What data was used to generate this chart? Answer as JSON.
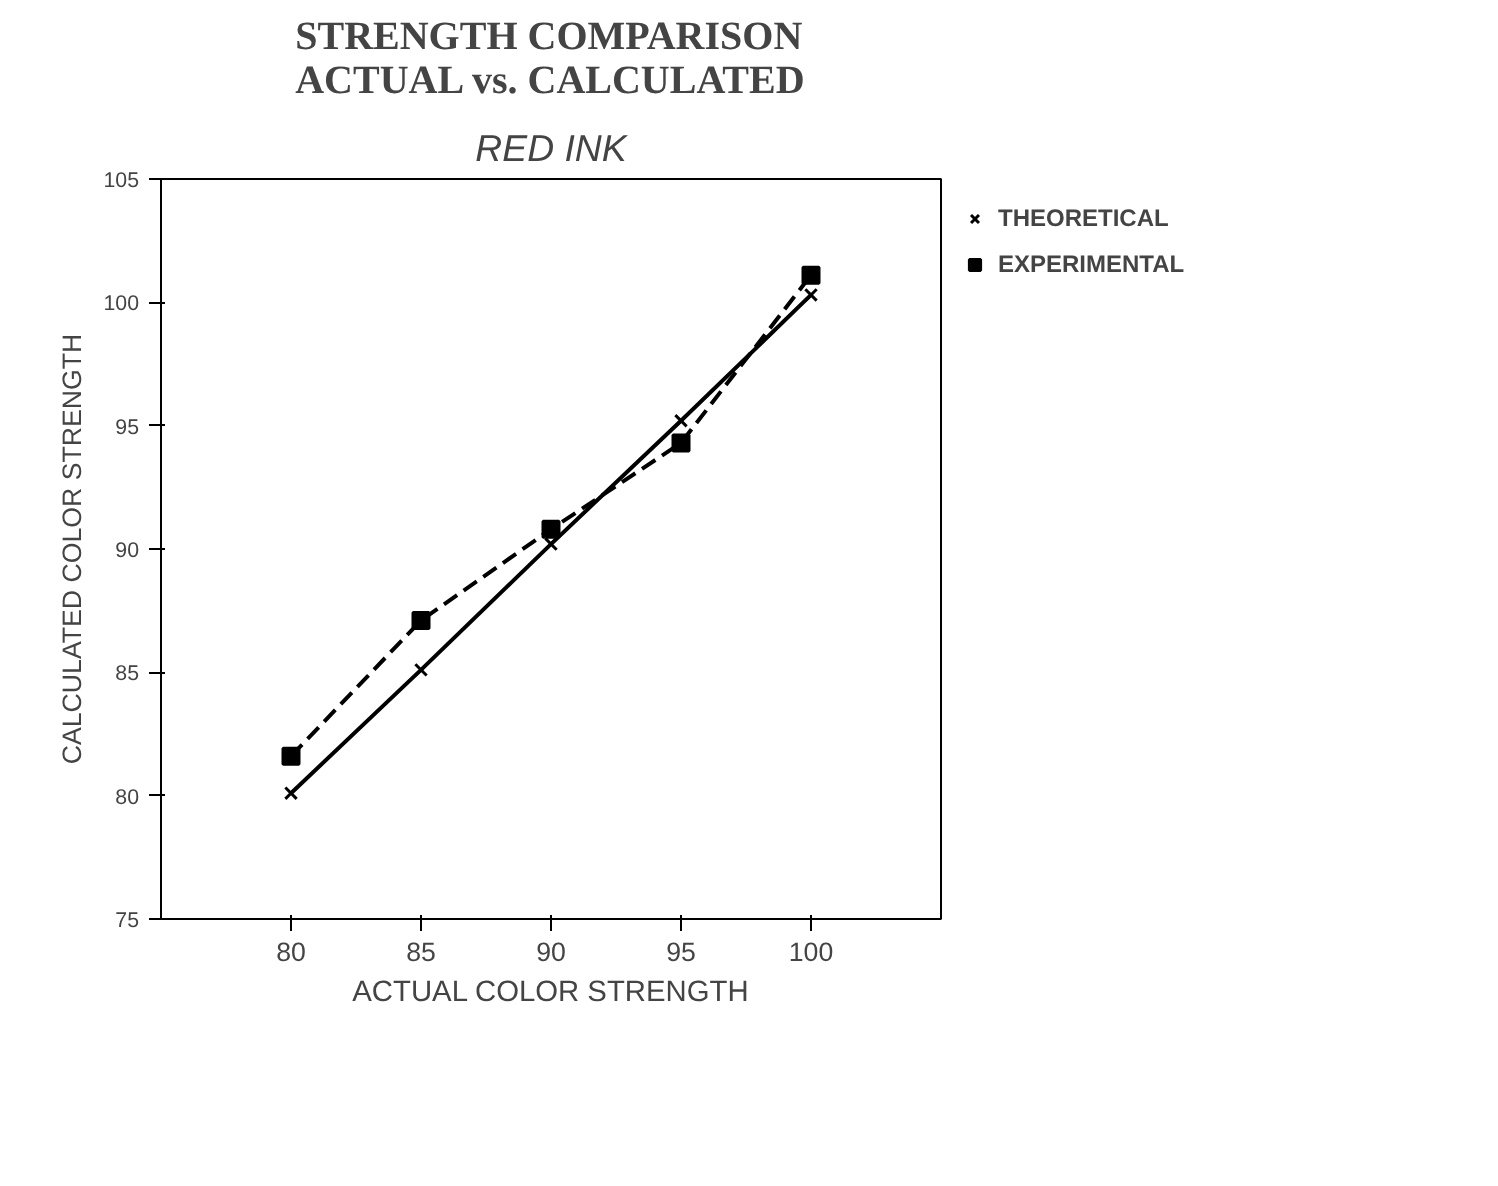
{
  "chart_data": {
    "type": "line",
    "title": "STRENGTH COMPARISON\nACTUAL vs. CALCULATED",
    "subtitle": "RED INK",
    "xlabel": "ACTUAL COLOR STRENGTH",
    "ylabel": "CALCULATED COLOR STRENGTH",
    "x": [
      80,
      85,
      90,
      95,
      100
    ],
    "series": [
      {
        "name": "THEORETICAL",
        "color": "#000000",
        "marker": "cross",
        "line_style": "solid",
        "values": [
          80.1,
          85.1,
          90.2,
          95.2,
          100.3
        ]
      },
      {
        "name": "EXPERIMENTAL",
        "color": "#000000",
        "marker": "square",
        "line_style": "dashed",
        "values": [
          81.6,
          87.1,
          90.8,
          94.3,
          101.1
        ]
      }
    ],
    "xlim": [
      75,
      105
    ],
    "xticks": [
      80,
      85,
      90,
      95,
      100
    ],
    "ylim": [
      75,
      105
    ],
    "yticks": [
      75,
      80,
      85,
      90,
      95,
      100,
      105
    ],
    "grid": false,
    "legend": "top right"
  }
}
